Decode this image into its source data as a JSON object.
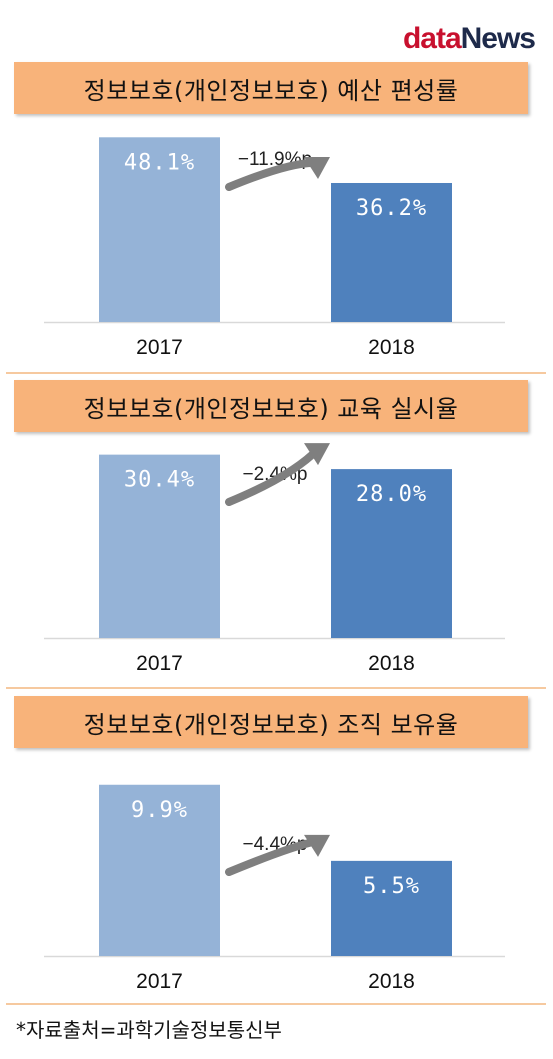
{
  "logo": {
    "part1": "data",
    "part2": "News"
  },
  "colors": {
    "bar_2017": "#95b3d7",
    "bar_2018": "#4f81bd",
    "banner": "#f8b37a",
    "arrow": "#7f7f7f"
  },
  "chart_data": [
    {
      "type": "bar",
      "title": "정보보호(개인정보보호) 예산 편성률",
      "categories": [
        "2017",
        "2018"
      ],
      "values": [
        48.1,
        36.2
      ],
      "value_labels": [
        "48.1%",
        "36.2%"
      ],
      "change_label": "−11.9%p",
      "ylim": [
        0,
        50
      ]
    },
    {
      "type": "bar",
      "title": "정보보호(개인정보보호) 교육 실시율",
      "categories": [
        "2017",
        "2018"
      ],
      "values": [
        30.4,
        28.0
      ],
      "value_labels": [
        "30.4%",
        "28.0%"
      ],
      "change_label": "−2.4%p",
      "ylim": [
        0,
        31.5
      ]
    },
    {
      "type": "bar",
      "title": "정보보호(개인정보보호) 조직 보유율",
      "categories": [
        "2017",
        "2018"
      ],
      "values": [
        9.9,
        5.5
      ],
      "value_labels": [
        "9.9%",
        "5.5%"
      ],
      "change_label": "−4.4%p",
      "ylim": [
        0,
        11.1
      ]
    }
  ],
  "footnote": "*자료출처=과학기술정보통신부"
}
